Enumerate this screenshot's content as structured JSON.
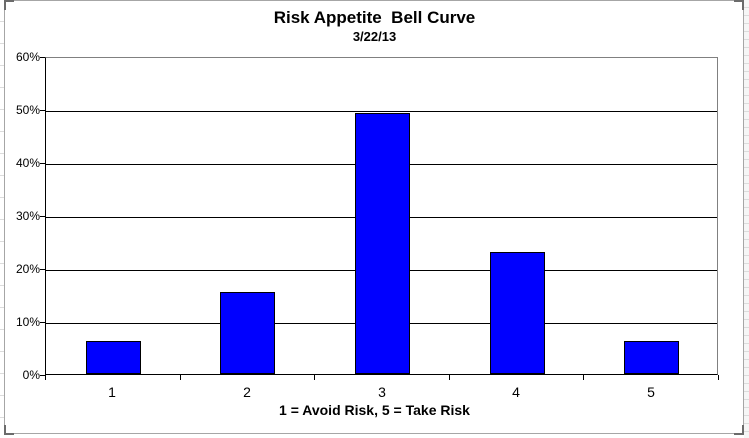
{
  "frame": {
    "background": "#ffffff",
    "border_color": "#a6a6a6",
    "corner_mark_color": "#6b6b6b"
  },
  "chart_data": {
    "type": "bar",
    "title": "Risk Appetite  Bell Curve",
    "subtitle": "3/22/13",
    "categories": [
      "1",
      "2",
      "3",
      "4",
      "5"
    ],
    "values": [
      6.2,
      15.4,
      49.2,
      23.1,
      6.2
    ],
    "xlabel": "1 = Avoid Risk, 5 = Take Risk",
    "ylabel": "",
    "ylim": [
      0,
      60
    ],
    "ytick_step": 10,
    "ytick_labels": [
      "0%",
      "10%",
      "20%",
      "30%",
      "40%",
      "50%",
      "60%"
    ],
    "grid": true,
    "legend_position": "none",
    "bar_fill_color": "#0000ff",
    "bar_border_color": "#000000",
    "gridline_color": "#000000",
    "axis_color": "#000000",
    "plot_border_color": "#808080",
    "plot_background": "#ffffff"
  }
}
